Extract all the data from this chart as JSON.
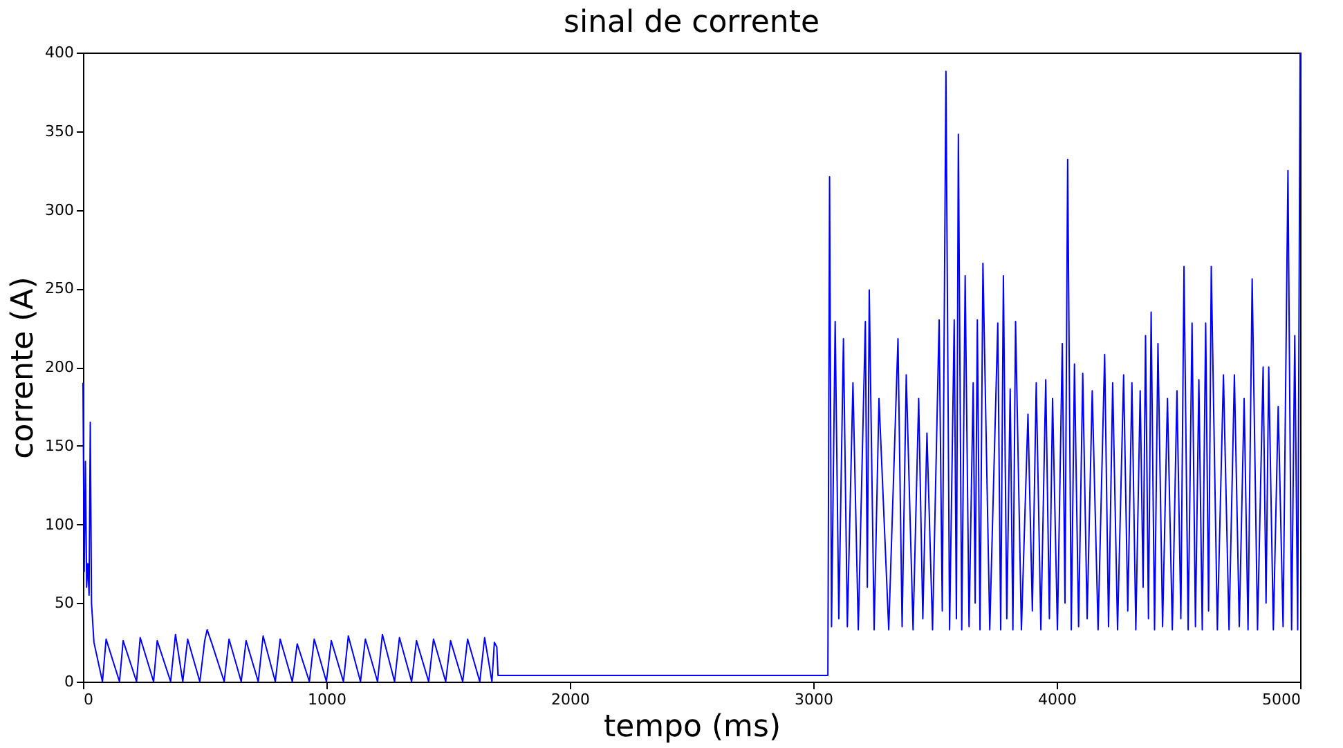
{
  "chart_data": {
    "type": "line",
    "title": "sinal de corrente",
    "xlabel": "tempo (ms)",
    "ylabel": "corrente (A)",
    "xlim": [
      0,
      5000
    ],
    "xticks": [
      0,
      1000,
      2000,
      3000,
      4000,
      5000
    ],
    "ylim": [
      0,
      400
    ],
    "yticks": [
      0,
      50,
      100,
      150,
      200,
      250,
      300,
      350,
      400
    ],
    "grid": false,
    "line_style": "solid",
    "marker": "none",
    "series": [
      {
        "color": "#0000ff",
        "x": [
          0,
          5,
          10,
          15,
          20,
          25,
          30,
          35,
          45,
          80,
          95,
          150,
          165,
          220,
          235,
          290,
          305,
          360,
          380,
          410,
          430,
          480,
          500,
          510,
          530,
          580,
          600,
          650,
          670,
          720,
          740,
          790,
          810,
          860,
          880,
          930,
          950,
          1000,
          1020,
          1070,
          1090,
          1140,
          1160,
          1210,
          1230,
          1280,
          1300,
          1350,
          1370,
          1420,
          1440,
          1490,
          1510,
          1560,
          1580,
          1630,
          1650,
          1680,
          1690,
          1700,
          1705,
          2000,
          2500,
          2750,
          3060,
          3067,
          3075,
          3090,
          3105,
          3124,
          3140,
          3163,
          3185,
          3214,
          3222,
          3230,
          3250,
          3270,
          3310,
          3348,
          3365,
          3382,
          3410,
          3433,
          3450,
          3467,
          3490,
          3517,
          3530,
          3545,
          3560,
          3579,
          3588,
          3596,
          3610,
          3624,
          3640,
          3657,
          3665,
          3674,
          3685,
          3697,
          3725,
          3758,
          3770,
          3781,
          3795,
          3809,
          3820,
          3831,
          3855,
          3882,
          3900,
          3916,
          3935,
          3955,
          3970,
          3983,
          4003,
          4023,
          4034,
          4045,
          4060,
          4073,
          4090,
          4107,
          4125,
          4146,
          4170,
          4197,
          4213,
          4230,
          4250,
          4275,
          4292,
          4309,
          4325,
          4343,
          4355,
          4365,
          4377,
          4388,
          4402,
          4416,
          4435,
          4455,
          4475,
          4494,
          4510,
          4523,
          4540,
          4556,
          4570,
          4584,
          4598,
          4612,
          4624,
          4635,
          4660,
          4685,
          4708,
          4730,
          4750,
          4770,
          4786,
          4803,
          4825,
          4848,
          4860,
          4871,
          4890,
          4910,
          4930,
          4950,
          4965,
          4978,
          4990,
          5000
        ],
        "values": [
          190,
          70,
          140,
          60,
          75,
          55,
          165,
          50,
          25,
          0,
          27,
          0,
          26,
          0,
          28,
          0,
          26,
          0,
          30,
          0,
          27,
          0,
          26,
          33,
          24,
          0,
          27,
          0,
          26,
          0,
          29,
          0,
          27,
          0,
          24,
          0,
          27,
          0,
          26,
          0,
          29,
          0,
          27,
          0,
          30,
          0,
          28,
          0,
          26,
          0,
          27,
          0,
          26,
          0,
          27,
          0,
          28,
          0,
          25,
          22,
          4,
          4,
          4,
          4,
          4,
          321,
          35,
          229,
          40,
          218,
          35,
          190,
          33,
          229,
          60,
          249,
          33,
          180,
          33,
          218,
          35,
          195,
          33,
          180,
          40,
          158,
          33,
          230,
          45,
          388,
          33,
          230,
          40,
          348,
          33,
          258,
          35,
          190,
          50,
          230,
          33,
          266,
          33,
          228,
          33,
          258,
          40,
          186,
          33,
          229,
          33,
          170,
          45,
          190,
          33,
          192,
          40,
          180,
          33,
          215,
          50,
          332,
          33,
          202,
          35,
          196,
          40,
          185,
          33,
          208,
          35,
          190,
          33,
          195,
          45,
          190,
          33,
          185,
          60,
          220,
          40,
          235,
          33,
          215,
          35,
          180,
          33,
          185,
          40,
          264,
          33,
          228,
          35,
          192,
          33,
          228,
          45,
          264,
          33,
          195,
          33,
          195,
          35,
          180,
          33,
          256,
          33,
          200,
          50,
          200,
          33,
          175,
          35,
          325,
          33,
          220,
          33,
          400
        ]
      }
    ]
  }
}
